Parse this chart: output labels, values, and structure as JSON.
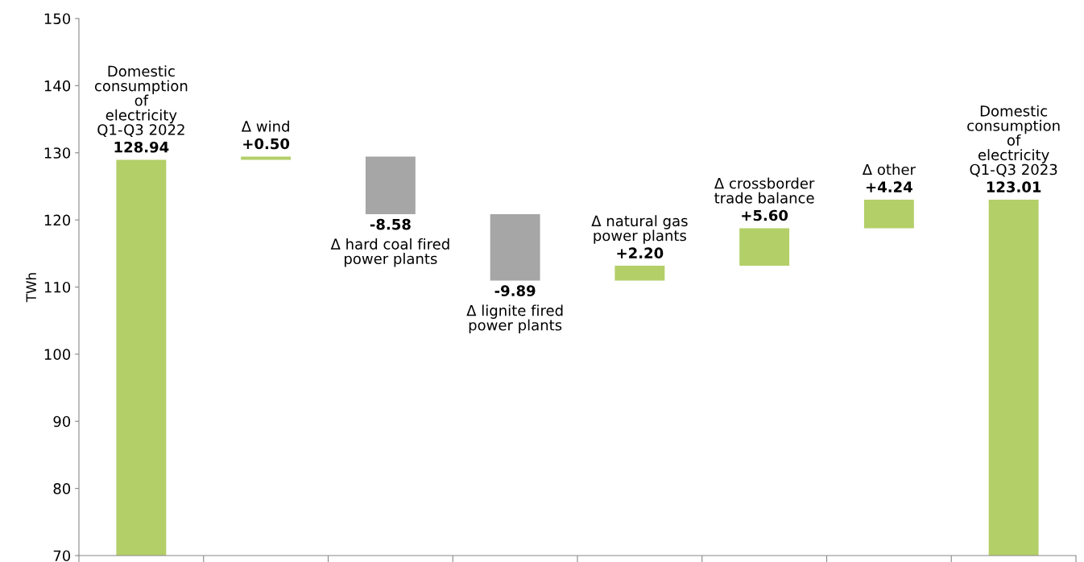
{
  "chart_data": {
    "type": "bar",
    "ylabel": "TWh",
    "categories": [
      "Domestic\nconsumption\nof\nelectricity\nQ1-Q3 2022",
      "Δ wind",
      "Δ hard coal fired\npower plants",
      "Δ lignite fired\npower plants",
      "Δ natural gas\npower plants",
      "Δ crossborder\ntrade balance",
      "Δ other",
      "Domestic\nconsumption\nof\nelectricity\nQ1-Q3 2023"
    ],
    "values": [
      128.94,
      0.5,
      -8.58,
      -9.89,
      2.2,
      5.6,
      4.24,
      123.01
    ],
    "base": [
      null,
      128.94,
      129.44,
      120.86,
      110.97,
      113.17,
      118.77,
      null
    ],
    "value_labels": [
      "128.94",
      "+0.50",
      "-8.58",
      "-9.89",
      "+2.20",
      "+5.60",
      "+4.24",
      "123.01"
    ],
    "colors": [
      "#b3cf68",
      "#b3cf68",
      "#a6a6a6",
      "#a6a6a6",
      "#b3cf68",
      "#b3cf68",
      "#b3cf68",
      "#b3cf68"
    ],
    "ylim": [
      70,
      150
    ],
    "yticks": [
      70,
      80,
      90,
      100,
      110,
      120,
      130,
      140,
      150
    ],
    "grid": false,
    "legend": false
  }
}
